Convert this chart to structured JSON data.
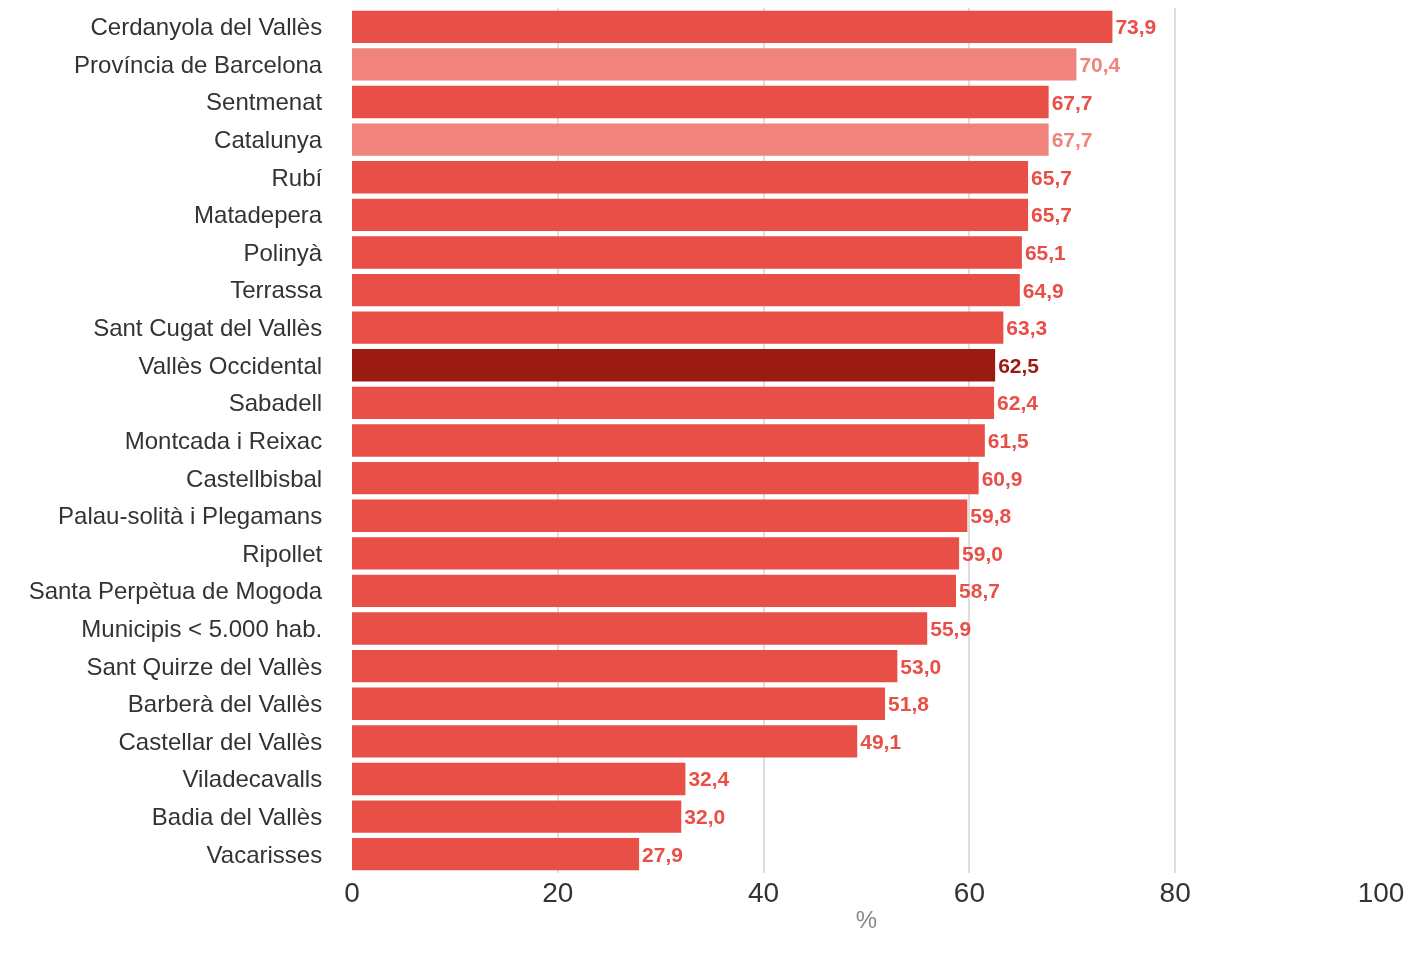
{
  "chart_data": {
    "type": "bar",
    "orientation": "horizontal",
    "xlabel": "%",
    "categories": [
      "Cerdanyola del Vallès",
      "Província de Barcelona",
      "Sentmenat",
      "Catalunya",
      "Rubí",
      "Matadepera",
      "Polinyà",
      "Terrassa",
      "Sant Cugat del Vallès",
      "Vallès Occidental",
      "Sabadell",
      "Montcada i Reixac",
      "Castellbisbal",
      "Palau-solità i Plegamans",
      "Ripollet",
      "Santa Perpètua de Mogoda",
      "Municipis < 5.000 hab.",
      "Sant Quirze del Vallès",
      "Barberà del Vallès",
      "Castellar del Vallès",
      "Viladecavalls",
      "Badia del Vallès",
      "Vacarisses"
    ],
    "values": [
      73.9,
      70.4,
      67.7,
      67.7,
      65.7,
      65.7,
      65.1,
      64.9,
      63.3,
      62.5,
      62.4,
      61.5,
      60.9,
      59.8,
      59.0,
      58.7,
      55.9,
      53.0,
      51.8,
      49.1,
      32.4,
      32.0,
      27.9
    ],
    "value_labels": [
      "73,9",
      "70,4",
      "67,7",
      "67,7",
      "65,7",
      "65,7",
      "65,1",
      "64,9",
      "63,3",
      "62,5",
      "62,4",
      "61,5",
      "60,9",
      "59,8",
      "59,0",
      "58,7",
      "55,9",
      "53,0",
      "51,8",
      "49,1",
      "32,4",
      "32,0",
      "27,9"
    ],
    "colors": [
      "#e84f47",
      "#f0837b",
      "#e84f47",
      "#f0837b",
      "#e84f47",
      "#e84f47",
      "#e84f47",
      "#e84f47",
      "#e84f47",
      "#9b1a12",
      "#e84f47",
      "#e84f47",
      "#e84f47",
      "#e84f47",
      "#e84f47",
      "#e84f47",
      "#e84f47",
      "#e84f47",
      "#e84f47",
      "#e84f47",
      "#e84f47",
      "#e84f47",
      "#e84f47"
    ],
    "xlim": [
      0,
      100
    ],
    "xticks": [
      0,
      20,
      40,
      60,
      80,
      100
    ],
    "grid": "x",
    "legend": false
  }
}
